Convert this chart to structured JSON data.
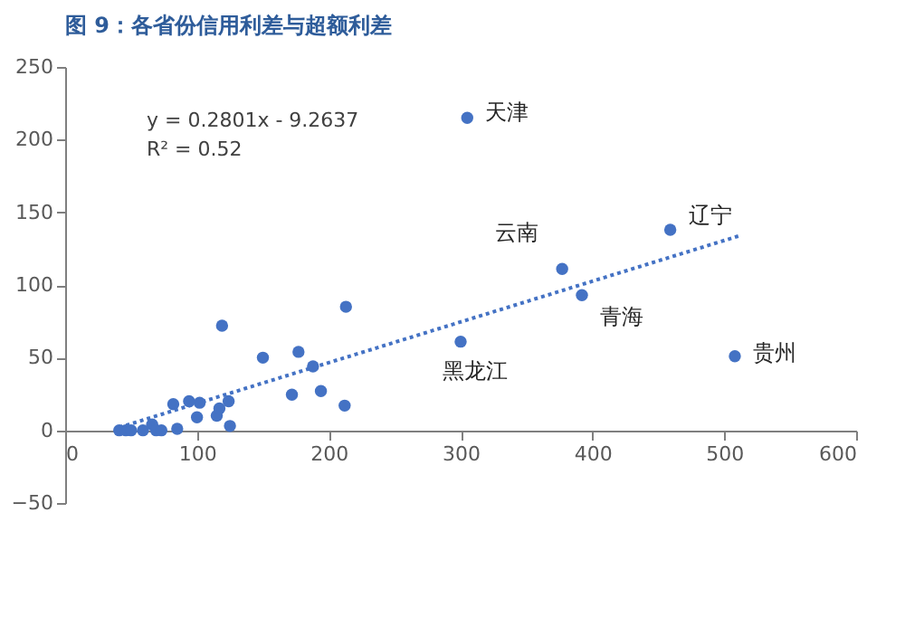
{
  "chart_data": {
    "type": "scatter",
    "title": "图 9：各省份信用利差与超额利差",
    "x": [
      41,
      46,
      50,
      59,
      66,
      69,
      73,
      82,
      85,
      94,
      100,
      102,
      115,
      117,
      119,
      124,
      125,
      150,
      172,
      177,
      188,
      194,
      212,
      213,
      300,
      305,
      377,
      392,
      459,
      508
    ],
    "series": [
      {
        "color": "#4472c4",
        "values": [
          0,
          0,
          0,
          0,
          4,
          0,
          0,
          18,
          1,
          20,
          9,
          19,
          10,
          15,
          72,
          20,
          3,
          50,
          24.5,
          54,
          44,
          27,
          17,
          85,
          61,
          215,
          111,
          93,
          138,
          51
        ]
      },
      {
        "type": "line",
        "color": "#4472c4",
        "line_style": "dotted",
        "marker": "none",
        "x": [
          41,
          512
        ],
        "values": [
          2,
          134
        ]
      }
    ],
    "xlim": [
      0,
      600
    ],
    "xticks": [
      0,
      100,
      200,
      300,
      400,
      500,
      600
    ],
    "ylim": [
      -50,
      250
    ],
    "yticks": [
      -50,
      0,
      50,
      100,
      150,
      200,
      250
    ],
    "grid": false,
    "marker": "circle",
    "annotations": [
      "y = 0.2801x - 9.2637",
      "R² = 0.52",
      {
        "text": "天津",
        "x": 305,
        "y": 215
      },
      {
        "text": "辽宁",
        "x": 459,
        "y": 138
      },
      {
        "text": "云南",
        "x": 377,
        "y": 111
      },
      {
        "text": "青海",
        "x": 392,
        "y": 93
      },
      {
        "text": "黑龙江",
        "x": 300,
        "y": 61
      },
      {
        "text": "贵州",
        "x": 508,
        "y": 51
      }
    ]
  }
}
